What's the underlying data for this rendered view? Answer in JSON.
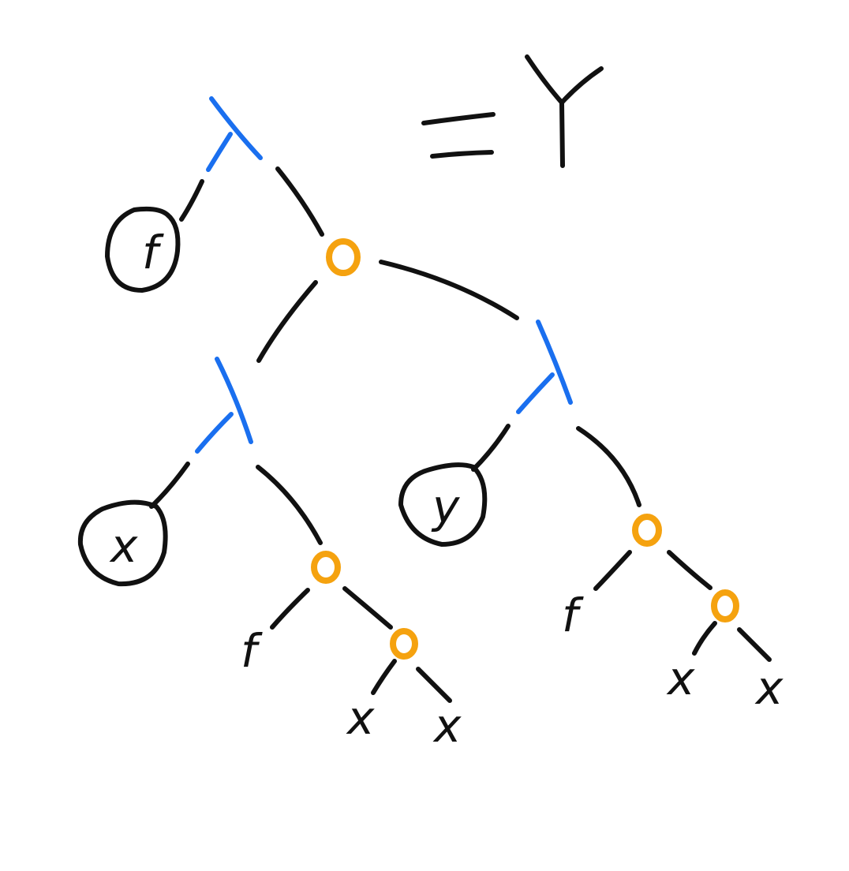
{
  "diagram": {
    "equals_symbol": "=",
    "result_label": "Y",
    "colors": {
      "ink": "#111111",
      "lambda": "#1a6fef",
      "application": "#f5a20f"
    },
    "nodes": {
      "lambda_top": {
        "type": "lambda"
      },
      "app_root": {
        "type": "application",
        "glyph": "o"
      },
      "bound_f": {
        "type": "bound-variable",
        "label": "f"
      },
      "lambda_x": {
        "type": "lambda"
      },
      "lambda_y": {
        "type": "lambda"
      },
      "bound_x": {
        "type": "bound-variable",
        "label": "x"
      },
      "bound_y": {
        "type": "bound-variable",
        "label": "y"
      },
      "app_left": {
        "type": "application",
        "glyph": "o"
      },
      "app_left_inner": {
        "type": "application",
        "glyph": "o"
      },
      "app_right": {
        "type": "application",
        "glyph": "o"
      },
      "app_right_inner": {
        "type": "application",
        "glyph": "o"
      },
      "leaf_f_left": {
        "type": "variable",
        "label": "f"
      },
      "leaf_x_left_1": {
        "type": "variable",
        "label": "x"
      },
      "leaf_x_left_2": {
        "type": "variable",
        "label": "x"
      },
      "leaf_f_right": {
        "type": "variable",
        "label": "f"
      },
      "leaf_x_right_1": {
        "type": "variable",
        "label": "x"
      },
      "leaf_x_right_2": {
        "type": "variable",
        "label": "x"
      }
    }
  }
}
